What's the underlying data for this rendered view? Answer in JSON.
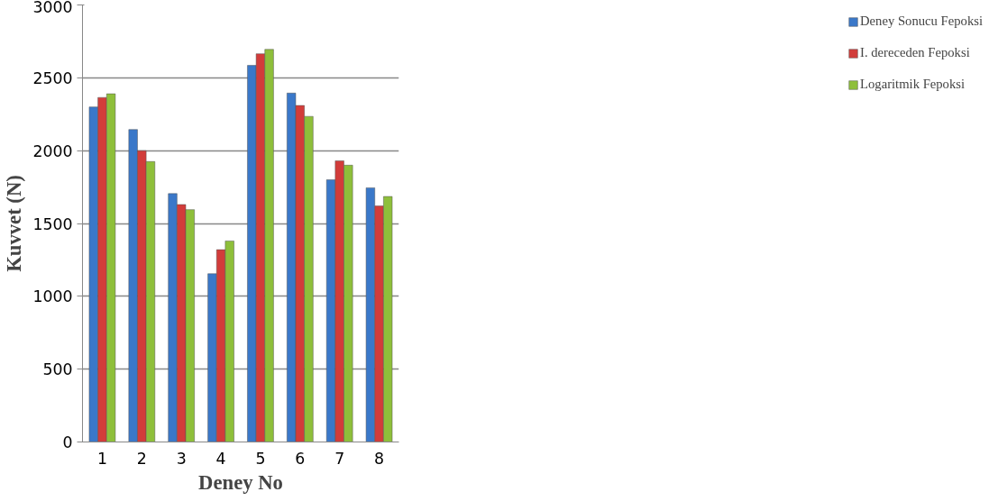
{
  "chart_data": {
    "type": "bar",
    "xlabel": "Deney No",
    "ylabel": "Kuvvet (N)",
    "categories": [
      "1",
      "2",
      "3",
      "4",
      "5",
      "6",
      "7",
      "8"
    ],
    "series": [
      {
        "name": "Deney Sonucu Fepoksi",
        "color": "#3a78c9",
        "values": [
          2300,
          2145,
          1705,
          1155,
          2585,
          2395,
          1800,
          1745
        ]
      },
      {
        "name": "I. dereceden Fepoksi",
        "color": "#d23c3a",
        "values": [
          2365,
          2000,
          1630,
          1320,
          2665,
          2310,
          1930,
          1620
        ]
      },
      {
        "name": "Logaritmik Fepoksi",
        "color": "#8ebf3a",
        "values": [
          2390,
          1925,
          1595,
          1380,
          2695,
          2235,
          1900,
          1685
        ]
      }
    ],
    "ylim": [
      0,
      3000
    ],
    "yticks": [
      0,
      500,
      1000,
      1500,
      2000,
      2500,
      3000
    ],
    "grid": "y",
    "legend": "right"
  }
}
